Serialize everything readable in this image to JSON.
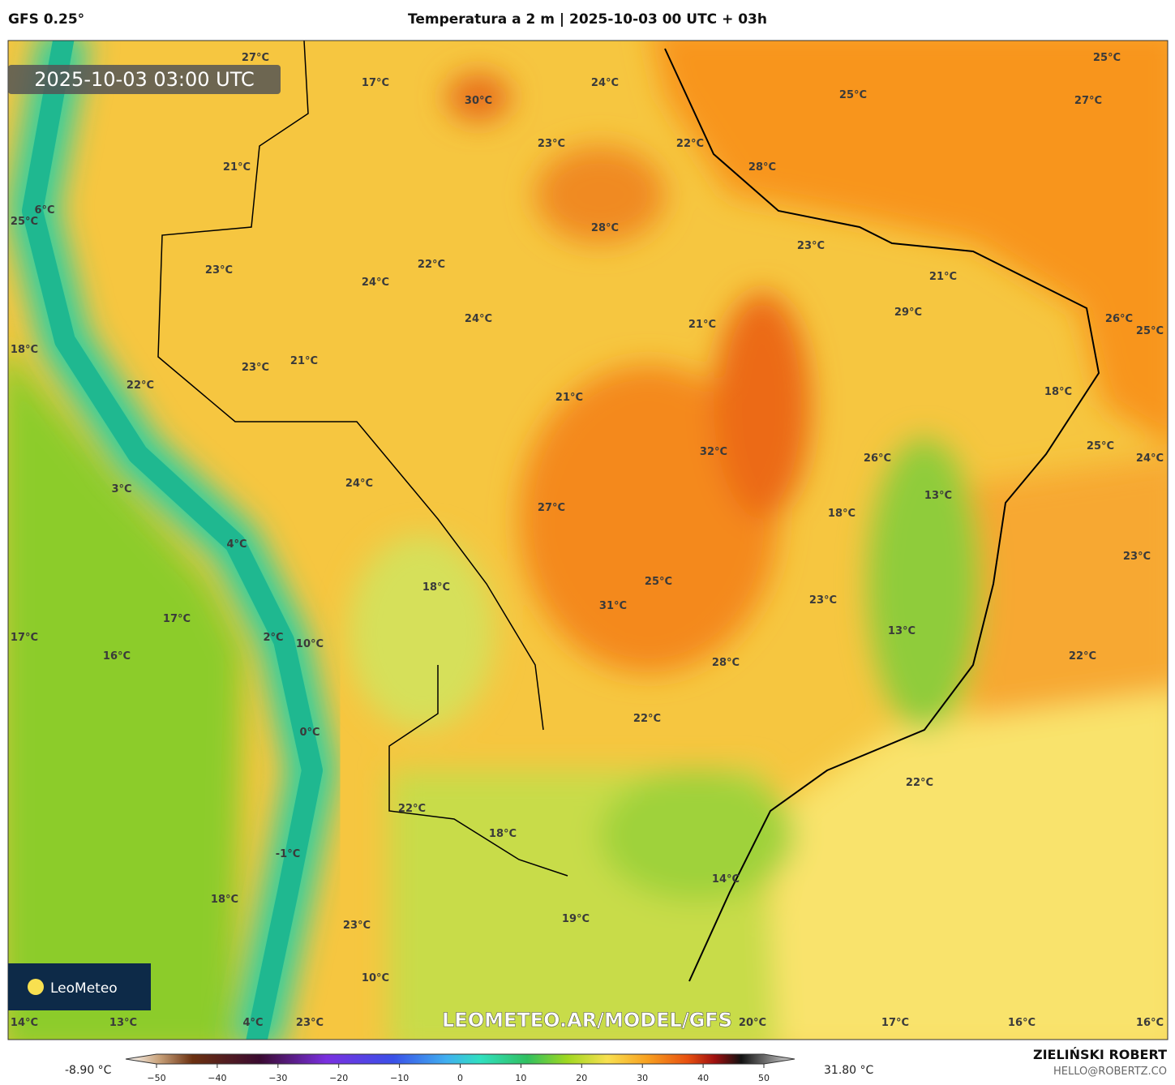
{
  "header": {
    "model": "GFS 0.25°",
    "title": "Temperatura a 2 m | 2025-10-03 00 UTC + 03h"
  },
  "map": {
    "timestamp": "2025-10-03 03:00 UTC",
    "watermark": "LEOMETEO.AR/MODEL/GFS",
    "logo": "LeoMeteo",
    "labels": [
      "27°C",
      "17°C",
      "30°C",
      "24°C",
      "25°C",
      "25°C",
      "27°C",
      "23°C",
      "22°C",
      "28°C",
      "21°C",
      "6°C",
      "25°C",
      "28°C",
      "23°C",
      "22°C",
      "23°C",
      "24°C",
      "21°C",
      "29°C",
      "26°C",
      "25°C",
      "24°C",
      "21°C",
      "18°C",
      "21°C",
      "23°C",
      "22°C",
      "21°C",
      "18°C",
      "32°C",
      "25°C",
      "26°C",
      "24°C",
      "24°C",
      "3°C",
      "13°C",
      "27°C",
      "18°C",
      "4°C",
      "23°C",
      "25°C",
      "18°C",
      "23°C",
      "31°C",
      "17°C",
      "13°C",
      "2°C",
      "10°C",
      "17°C",
      "16°C",
      "22°C",
      "28°C",
      "22°C",
      "0°C",
      "22°C",
      "22°C",
      "18°C",
      "-1°C",
      "14°C",
      "18°C",
      "19°C",
      "23°C",
      "10°C",
      "14°C",
      "13°C",
      "4°C",
      "23°C",
      "20°C",
      "17°C",
      "16°C",
      "16°C"
    ]
  },
  "colorbar": {
    "min_label": "-8.90 °C",
    "max_label": "31.80 °C",
    "ticks": [
      {
        "value": -50,
        "label": "−50"
      },
      {
        "value": -40,
        "label": "−40"
      },
      {
        "value": -30,
        "label": "−30"
      },
      {
        "value": -20,
        "label": "−20"
      },
      {
        "value": -10,
        "label": "−10"
      },
      0,
      10,
      20,
      30,
      40,
      50
    ]
  },
  "footer": {
    "author": "ZIELIŃSKI ROBERT",
    "email": "HELLO@ROBERTZ.CO"
  }
}
